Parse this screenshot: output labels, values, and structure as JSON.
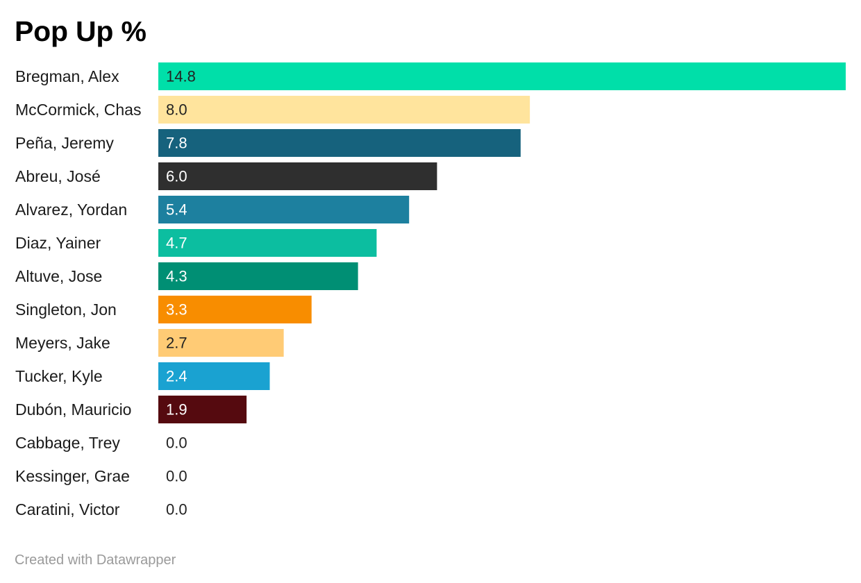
{
  "chart_data": {
    "type": "bar",
    "orientation": "horizontal",
    "title": "Pop Up %",
    "xlabel": "",
    "ylabel": "",
    "xlim": [
      0,
      14.8
    ],
    "grid": false,
    "legend": "none",
    "value_labels": "inside-bar",
    "categories": [
      "Bregman, Alex",
      "McCormick, Chas",
      "Peña, Jeremy",
      "Abreu, José",
      "Alvarez, Yordan",
      "Diaz, Yainer",
      "Altuve, Jose",
      "Singleton, Jon",
      "Meyers, Jake",
      "Tucker, Kyle",
      "Dubón, Mauricio",
      "Cabbage, Trey",
      "Kessinger, Grae",
      "Caratini, Victor"
    ],
    "values": [
      14.8,
      8.0,
      7.8,
      6.0,
      5.4,
      4.7,
      4.3,
      3.3,
      2.7,
      2.4,
      1.9,
      0.0,
      0.0,
      0.0
    ],
    "value_text": [
      "14.8",
      "8.0",
      "7.8",
      "6.0",
      "5.4",
      "4.7",
      "4.3",
      "3.3",
      "2.7",
      "2.4",
      "1.9",
      "0.0",
      "0.0",
      "0.0"
    ],
    "colors": [
      "#00dfa9",
      "#ffe49d",
      "#16627d",
      "#2f2f2f",
      "#1d809f",
      "#0cbea0",
      "#008f74",
      "#f88d00",
      "#ffcb75",
      "#1aa2d1",
      "#550a0f",
      "#ffffff",
      "#ffffff",
      "#ffffff"
    ],
    "label_colors": [
      "#222222",
      "#222222",
      "#ffffff",
      "#ffffff",
      "#ffffff",
      "#ffffff",
      "#ffffff",
      "#ffffff",
      "#222222",
      "#ffffff",
      "#ffffff",
      "#222222",
      "#222222",
      "#222222"
    ]
  },
  "footer": {
    "credit": "Created with Datawrapper"
  }
}
